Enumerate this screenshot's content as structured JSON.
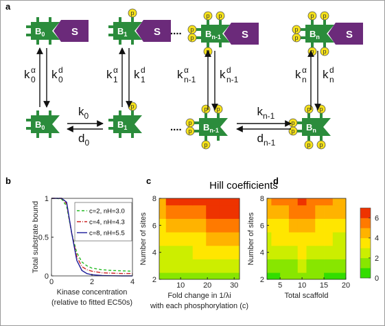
{
  "panel_labels": [
    "a",
    "b",
    "c",
    "d"
  ],
  "title": "Hill coefficients",
  "diagram": {
    "blocks": [
      {
        "base": "B",
        "sub": "0"
      },
      {
        "base": "B",
        "sub": "1"
      },
      {
        "base": "B",
        "sub": "n-1"
      },
      {
        "base": "B",
        "sub": "n"
      }
    ],
    "substrate": "S",
    "phospho": "p",
    "ellipsis": "....",
    "vertical": [
      {
        "up": {
          "base": "k",
          "sub": "0",
          "sup": "α"
        },
        "down": {
          "base": "k",
          "sub": "0",
          "sup": "d"
        }
      },
      {
        "up": {
          "base": "k",
          "sub": "1",
          "sup": "α"
        },
        "down": {
          "base": "k",
          "sub": "1",
          "sup": "d"
        }
      },
      {
        "up": {
          "base": "k",
          "sub": "n-1",
          "sup": "α"
        },
        "down": {
          "base": "k",
          "sub": "n-1",
          "sup": "d"
        }
      },
      {
        "up": {
          "base": "k",
          "sub": "n",
          "sup": "α"
        },
        "down": {
          "base": "k",
          "sub": "n",
          "sup": "d"
        }
      }
    ],
    "horizontal": [
      {
        "forward": {
          "base": "k",
          "sub": "0"
        },
        "back": {
          "base": "d",
          "sub": "0"
        }
      },
      {
        "forward": {
          "base": "k",
          "sub": "n-1"
        },
        "back": {
          "base": "d",
          "sub": "n-1"
        }
      }
    ]
  },
  "colorbar": {
    "zlim": [
      0,
      7
    ],
    "zticks": [
      0,
      2,
      4,
      6
    ],
    "colormap": [
      "#33dd00",
      "#88e600",
      "#ccee00",
      "#ffe600",
      "#ffb300",
      "#ff7a00",
      "#ee3300"
    ]
  },
  "chart_data": [
    {
      "type": "line",
      "ylabel": "Total substrate bound",
      "xlabel": [
        "Kinase concentration",
        "(relative to fitted EC50s)"
      ],
      "x": [
        0,
        0.25,
        0.5,
        0.75,
        1,
        1.25,
        1.5,
        1.75,
        2,
        2.5,
        3,
        3.5,
        4
      ],
      "xlim": [
        0,
        4
      ],
      "ylim": [
        0,
        1
      ],
      "xticks": [
        0,
        2,
        4
      ],
      "yticks": [
        0,
        0.5,
        1
      ],
      "series": [
        {
          "name": "c=2, nH=3.0",
          "color": "#22bb22",
          "dash": "4,3",
          "values": [
            1,
            1,
            0.99,
            0.9,
            0.55,
            0.3,
            0.18,
            0.13,
            0.1,
            0.08,
            0.07,
            0.065,
            0.06
          ]
        },
        {
          "name": "c=4, nH=4.3",
          "color": "#cc2222",
          "dash": "6,2,1,2",
          "values": [
            1,
            1,
            1,
            0.93,
            0.55,
            0.25,
            0.12,
            0.08,
            0.06,
            0.04,
            0.035,
            0.03,
            0.03
          ]
        },
        {
          "name": "c=8, nH=5.5",
          "color": "#1a1a99",
          "dash": "none",
          "values": [
            1,
            1,
            1,
            0.95,
            0.55,
            0.2,
            0.07,
            0.03,
            0.015,
            0.005,
            0.002,
            0,
            0
          ]
        }
      ]
    },
    {
      "type": "heatmap",
      "ylabel": "Number of sites",
      "xlabel": [
        "Fold change in 1/λi",
        "with each phosphorylation (c)"
      ],
      "x": [
        2,
        7,
        12,
        17,
        22,
        27,
        32
      ],
      "y": [
        2,
        3,
        4,
        5,
        6,
        7,
        8
      ],
      "xlim": [
        2,
        32
      ],
      "ylim": [
        2,
        8
      ],
      "xticks": [
        10,
        20,
        30
      ],
      "yticks": [
        2,
        4,
        6,
        8
      ],
      "z": [
        [
          1,
          1.2,
          1.3,
          1.3,
          1.4,
          1.4,
          1.4
        ],
        [
          2,
          2.1,
          2.2,
          2.2,
          2.2,
          2.2,
          2.2
        ],
        [
          2.5,
          2.8,
          2.9,
          3,
          3,
          3,
          3.1
        ],
        [
          3,
          3.6,
          3.8,
          3.9,
          4,
          4,
          4.1
        ],
        [
          3.5,
          4.4,
          4.7,
          4.9,
          5,
          5,
          5.1
        ],
        [
          4,
          5.2,
          5.6,
          5.8,
          6,
          6,
          6.1
        ],
        [
          4.5,
          6,
          6.5,
          6.8,
          7,
          7,
          7.2
        ]
      ]
    },
    {
      "type": "heatmap",
      "ylabel": "Number of sites",
      "xlabel": [
        "Total scaffold"
      ],
      "x": [
        2,
        4,
        6,
        8,
        10,
        12,
        14,
        16,
        18,
        20
      ],
      "y": [
        2,
        3,
        4,
        5,
        6,
        7,
        8
      ],
      "xlim": [
        2,
        20
      ],
      "ylim": [
        2,
        8
      ],
      "xticks": [
        5,
        10,
        15,
        20
      ],
      "yticks": [
        2,
        4,
        6,
        8
      ],
      "z": [
        [
          0.8,
          0.9,
          1,
          1.1,
          1.3,
          1.1,
          1,
          0.9,
          0.8,
          0.8
        ],
        [
          1.5,
          1.6,
          1.7,
          1.9,
          2.1,
          1.9,
          1.7,
          1.6,
          1.5,
          1.5
        ],
        [
          2.2,
          2.3,
          2.5,
          2.7,
          3,
          2.7,
          2.5,
          2.3,
          2.2,
          2.2
        ],
        [
          2.9,
          3,
          3.2,
          3.5,
          3.8,
          3.5,
          3.2,
          3,
          2.9,
          2.9
        ],
        [
          3.5,
          3.7,
          3.9,
          4.3,
          4.7,
          4.3,
          3.9,
          3.7,
          3.5,
          3.5
        ],
        [
          4.2,
          4.4,
          4.7,
          5.1,
          5.6,
          5.1,
          4.7,
          4.4,
          4.2,
          4.2
        ],
        [
          4.8,
          5,
          5.3,
          5.8,
          6.3,
          5.8,
          5.3,
          5,
          4.8,
          4.8
        ]
      ]
    }
  ]
}
